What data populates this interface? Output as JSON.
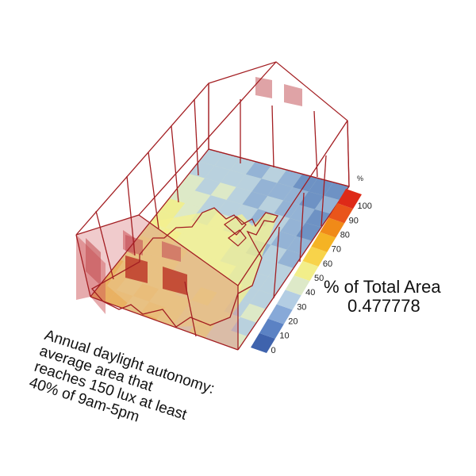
{
  "legend": {
    "unit": "%",
    "ticks": [
      "0",
      "10",
      "20",
      "30",
      "40",
      "50",
      "60",
      "70",
      "80",
      "90",
      "100"
    ],
    "colors": [
      "#3f63ad",
      "#5b82c4",
      "#87a9d8",
      "#b3cde3",
      "#dde9c8",
      "#f2ee8a",
      "#f8d34a",
      "#f5b324",
      "#f08a18",
      "#e9551b",
      "#de2a18"
    ]
  },
  "result": {
    "label": "% of Total Area",
    "value": "0.477778"
  },
  "metric": {
    "lines": [
      "Annual daylight autonomy:",
      "average area that",
      "reaches 150 lux at least",
      "40% of 9am-5pm"
    ]
  },
  "colors": {
    "frame": "#a31e22",
    "window": "#c8454a"
  }
}
